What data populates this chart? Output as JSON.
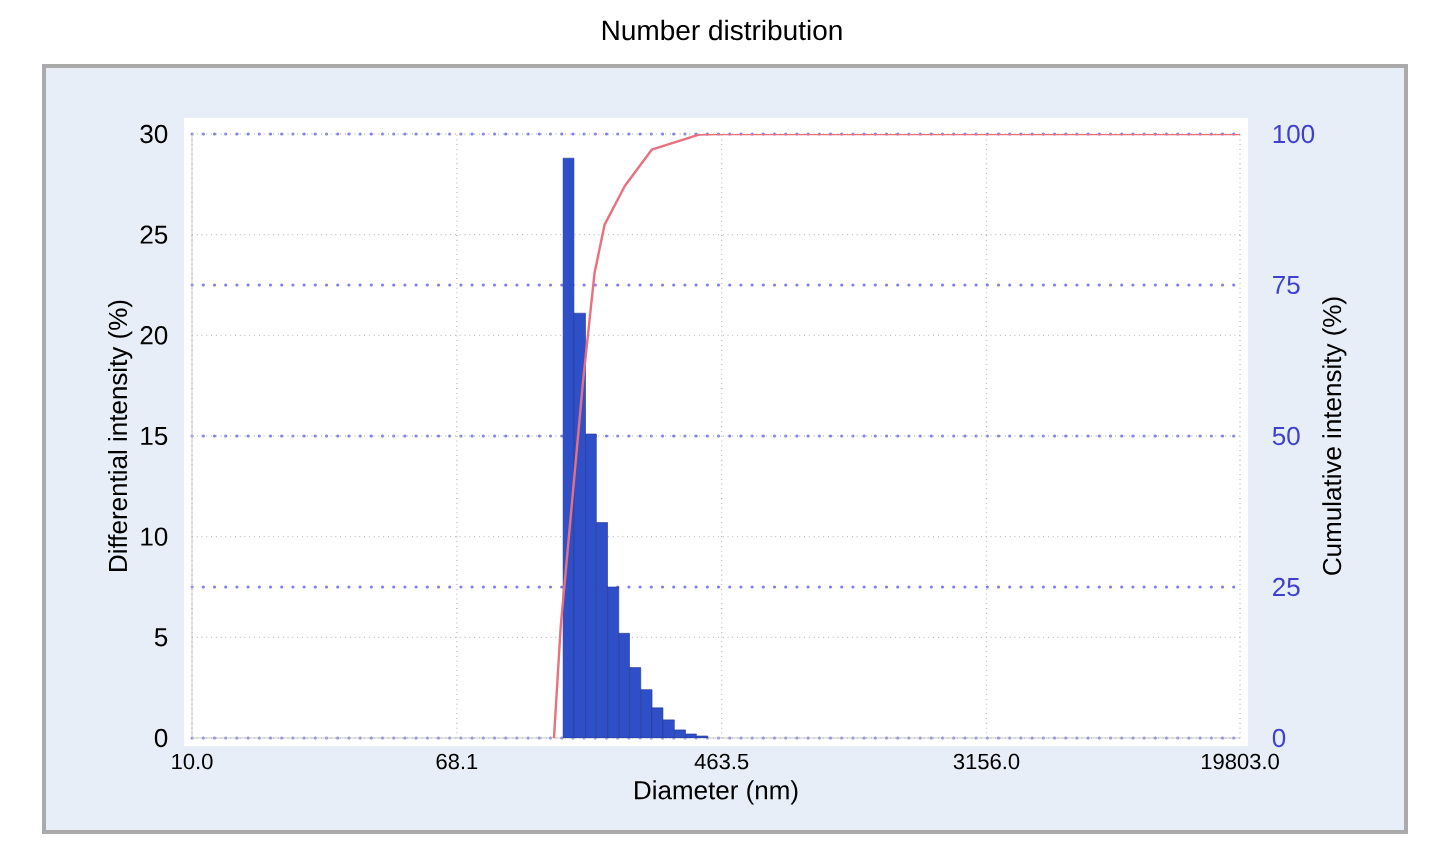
{
  "chart_data": {
    "type": "histogram",
    "title": "Number distribution",
    "xlabel": "Diameter (nm)",
    "ylabel": "Differential intensity (%)",
    "y2label": "Cumulative intensity (%)",
    "log": "x",
    "grid": true,
    "xlim": [
      10,
      19803
    ],
    "xticks": [
      {
        "value": 10,
        "label": "10.0"
      },
      68.1,
      463.5,
      {
        "value": 3156,
        "label": "3156.0"
      },
      {
        "value": 19803,
        "label": "19803.0"
      }
    ],
    "ylim": [
      0,
      30
    ],
    "yticks": [
      0,
      5,
      10,
      15,
      20,
      25,
      30
    ],
    "y2lim": [
      0,
      100
    ],
    "y2ticks": [
      0,
      25,
      50,
      75,
      100
    ],
    "series": [
      {
        "color": "#2f4fc8",
        "bins": [
          147,
          159,
          173,
          187,
          203,
          220,
          238,
          258,
          280,
          303,
          329,
          357,
          386,
          419
        ],
        "values": [
          28.8,
          21.1,
          15.1,
          10.7,
          7.5,
          5.2,
          3.5,
          2.4,
          1.5,
          0.9,
          0.4,
          0.2,
          0.1
        ]
      },
      {
        "type": "line",
        "axis": "y2",
        "color": "#e8707f",
        "x": [
          137.6,
          144.5,
          169.8,
          184.6,
          198.6,
          229.8,
          279.3,
          393.6,
          455,
          19803
        ],
        "values": [
          0,
          18.5,
          59,
          77,
          85,
          91.4,
          97.4,
          99.9,
          100,
          100
        ]
      }
    ]
  }
}
